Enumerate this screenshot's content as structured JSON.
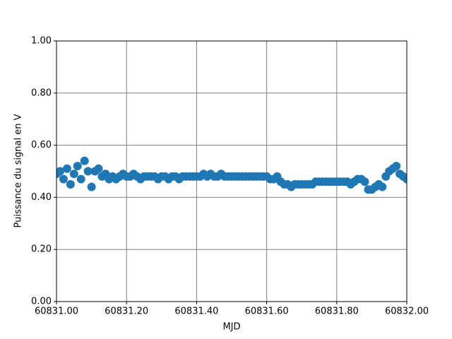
{
  "chart_data": {
    "type": "scatter",
    "xlabel": "MJD",
    "ylabel": "Puissance du signal en V",
    "color": "#1f77b4",
    "grid": true,
    "xlim": [
      60831,
      60832
    ],
    "xticks": [
      {
        "value": 60831,
        "label": "60831.00"
      },
      {
        "value": 60831.2,
        "label": "60831.20"
      },
      {
        "value": 60831.4,
        "label": "60831.40"
      },
      {
        "value": 60831.6,
        "label": "60831.60"
      },
      {
        "value": 60831.8,
        "label": "60831.80"
      },
      {
        "value": 60832,
        "label": "60832.00"
      }
    ],
    "ylim": [
      0,
      1
    ],
    "yticks": [
      {
        "value": 0,
        "label": "0.00"
      },
      {
        "value": 0.2,
        "label": "0.20"
      },
      {
        "value": 0.4,
        "label": "0.40"
      },
      {
        "value": 0.6,
        "label": "0.60"
      },
      {
        "value": 0.8,
        "label": "0.80"
      },
      {
        "value": 1,
        "label": "1.00"
      }
    ],
    "x": [
      60831,
      60831.01,
      60831.02,
      60831.03,
      60831.04,
      60831.05,
      60831.06,
      60831.07,
      60831.08,
      60831.09,
      60831.1,
      60831.11,
      60831.12,
      60831.13,
      60831.14,
      60831.15,
      60831.16,
      60831.17,
      60831.18,
      60831.19,
      60831.2,
      60831.21,
      60831.22,
      60831.23,
      60831.24,
      60831.25,
      60831.26,
      60831.27,
      60831.28,
      60831.29,
      60831.3,
      60831.31,
      60831.32,
      60831.33,
      60831.34,
      60831.35,
      60831.36,
      60831.37,
      60831.38,
      60831.39,
      60831.4,
      60831.41,
      60831.42,
      60831.43,
      60831.44,
      60831.45,
      60831.46,
      60831.47,
      60831.48,
      60831.49,
      60831.5,
      60831.51,
      60831.52,
      60831.53,
      60831.54,
      60831.55,
      60831.56,
      60831.57,
      60831.58,
      60831.59,
      60831.6,
      60831.61,
      60831.62,
      60831.63,
      60831.64,
      60831.65,
      60831.66,
      60831.67,
      60831.68,
      60831.69,
      60831.7,
      60831.71,
      60831.72,
      60831.73,
      60831.74,
      60831.75,
      60831.76,
      60831.77,
      60831.78,
      60831.79,
      60831.8,
      60831.81,
      60831.82,
      60831.83,
      60831.84,
      60831.85,
      60831.86,
      60831.87,
      60831.88,
      60831.89,
      60831.9,
      60831.91,
      60831.92,
      60831.93,
      60831.94,
      60831.95,
      60831.96,
      60831.97,
      60831.98,
      60831.99,
      60832
    ],
    "values": [
      0.49,
      0.5,
      0.47,
      0.51,
      0.45,
      0.49,
      0.52,
      0.47,
      0.54,
      0.5,
      0.44,
      0.5,
      0.51,
      0.48,
      0.49,
      0.47,
      0.48,
      0.47,
      0.48,
      0.49,
      0.48,
      0.48,
      0.49,
      0.48,
      0.47,
      0.48,
      0.48,
      0.48,
      0.48,
      0.47,
      0.48,
      0.48,
      0.47,
      0.48,
      0.48,
      0.47,
      0.48,
      0.48,
      0.48,
      0.48,
      0.48,
      0.48,
      0.49,
      0.48,
      0.49,
      0.48,
      0.48,
      0.49,
      0.48,
      0.48,
      0.48,
      0.48,
      0.48,
      0.48,
      0.48,
      0.48,
      0.48,
      0.48,
      0.48,
      0.48,
      0.48,
      0.47,
      0.47,
      0.48,
      0.46,
      0.45,
      0.45,
      0.44,
      0.45,
      0.45,
      0.45,
      0.45,
      0.45,
      0.45,
      0.46,
      0.46,
      0.46,
      0.46,
      0.46,
      0.46,
      0.46,
      0.46,
      0.46,
      0.46,
      0.45,
      0.46,
      0.47,
      0.47,
      0.46,
      0.43,
      0.43,
      0.44,
      0.45,
      0.44,
      0.48,
      0.5,
      0.51,
      0.52,
      0.49,
      0.48,
      0.47
    ]
  }
}
